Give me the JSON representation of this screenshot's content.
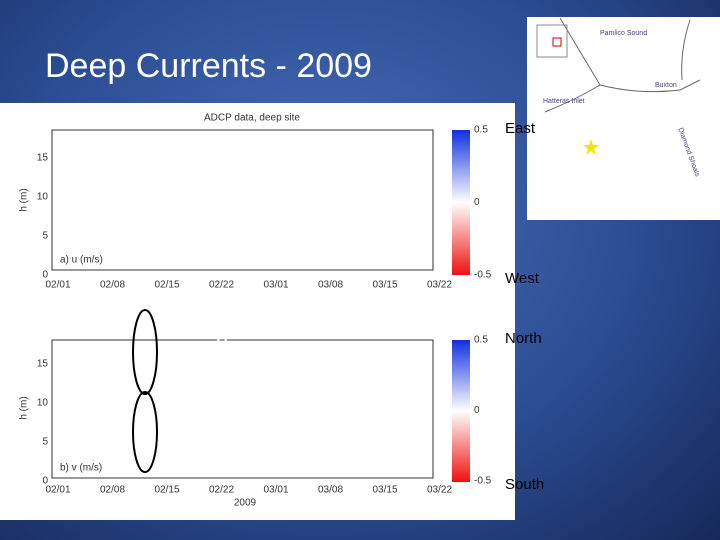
{
  "slide": {
    "title": "Deep Currents - 2009"
  },
  "figure": {
    "title": "ADCP data, deep site",
    "y_label": "h (m)",
    "x_label": "2009",
    "y_tick_labels": [
      "0",
      "5",
      "10",
      "15"
    ],
    "x_tick_labels": [
      "02/01",
      "02/08",
      "02/15",
      "02/22",
      "03/01",
      "03/08",
      "03/15",
      "03/22"
    ],
    "panels": [
      {
        "label": "a) u (m/s)",
        "colorbar_labels": [
          "0.5",
          "0",
          "-0.5"
        ],
        "top_direction": "East",
        "bottom_direction": "West"
      },
      {
        "label": "b) v (m/s)",
        "colorbar_labels": [
          "0.5",
          "0",
          "-0.5"
        ],
        "top_direction": "North",
        "bottom_direction": "South"
      }
    ]
  },
  "map": {
    "labels": [
      "Pamlico Sound",
      "Buxton",
      "Hatteras Inlet",
      "Diamond Shoals"
    ]
  }
}
